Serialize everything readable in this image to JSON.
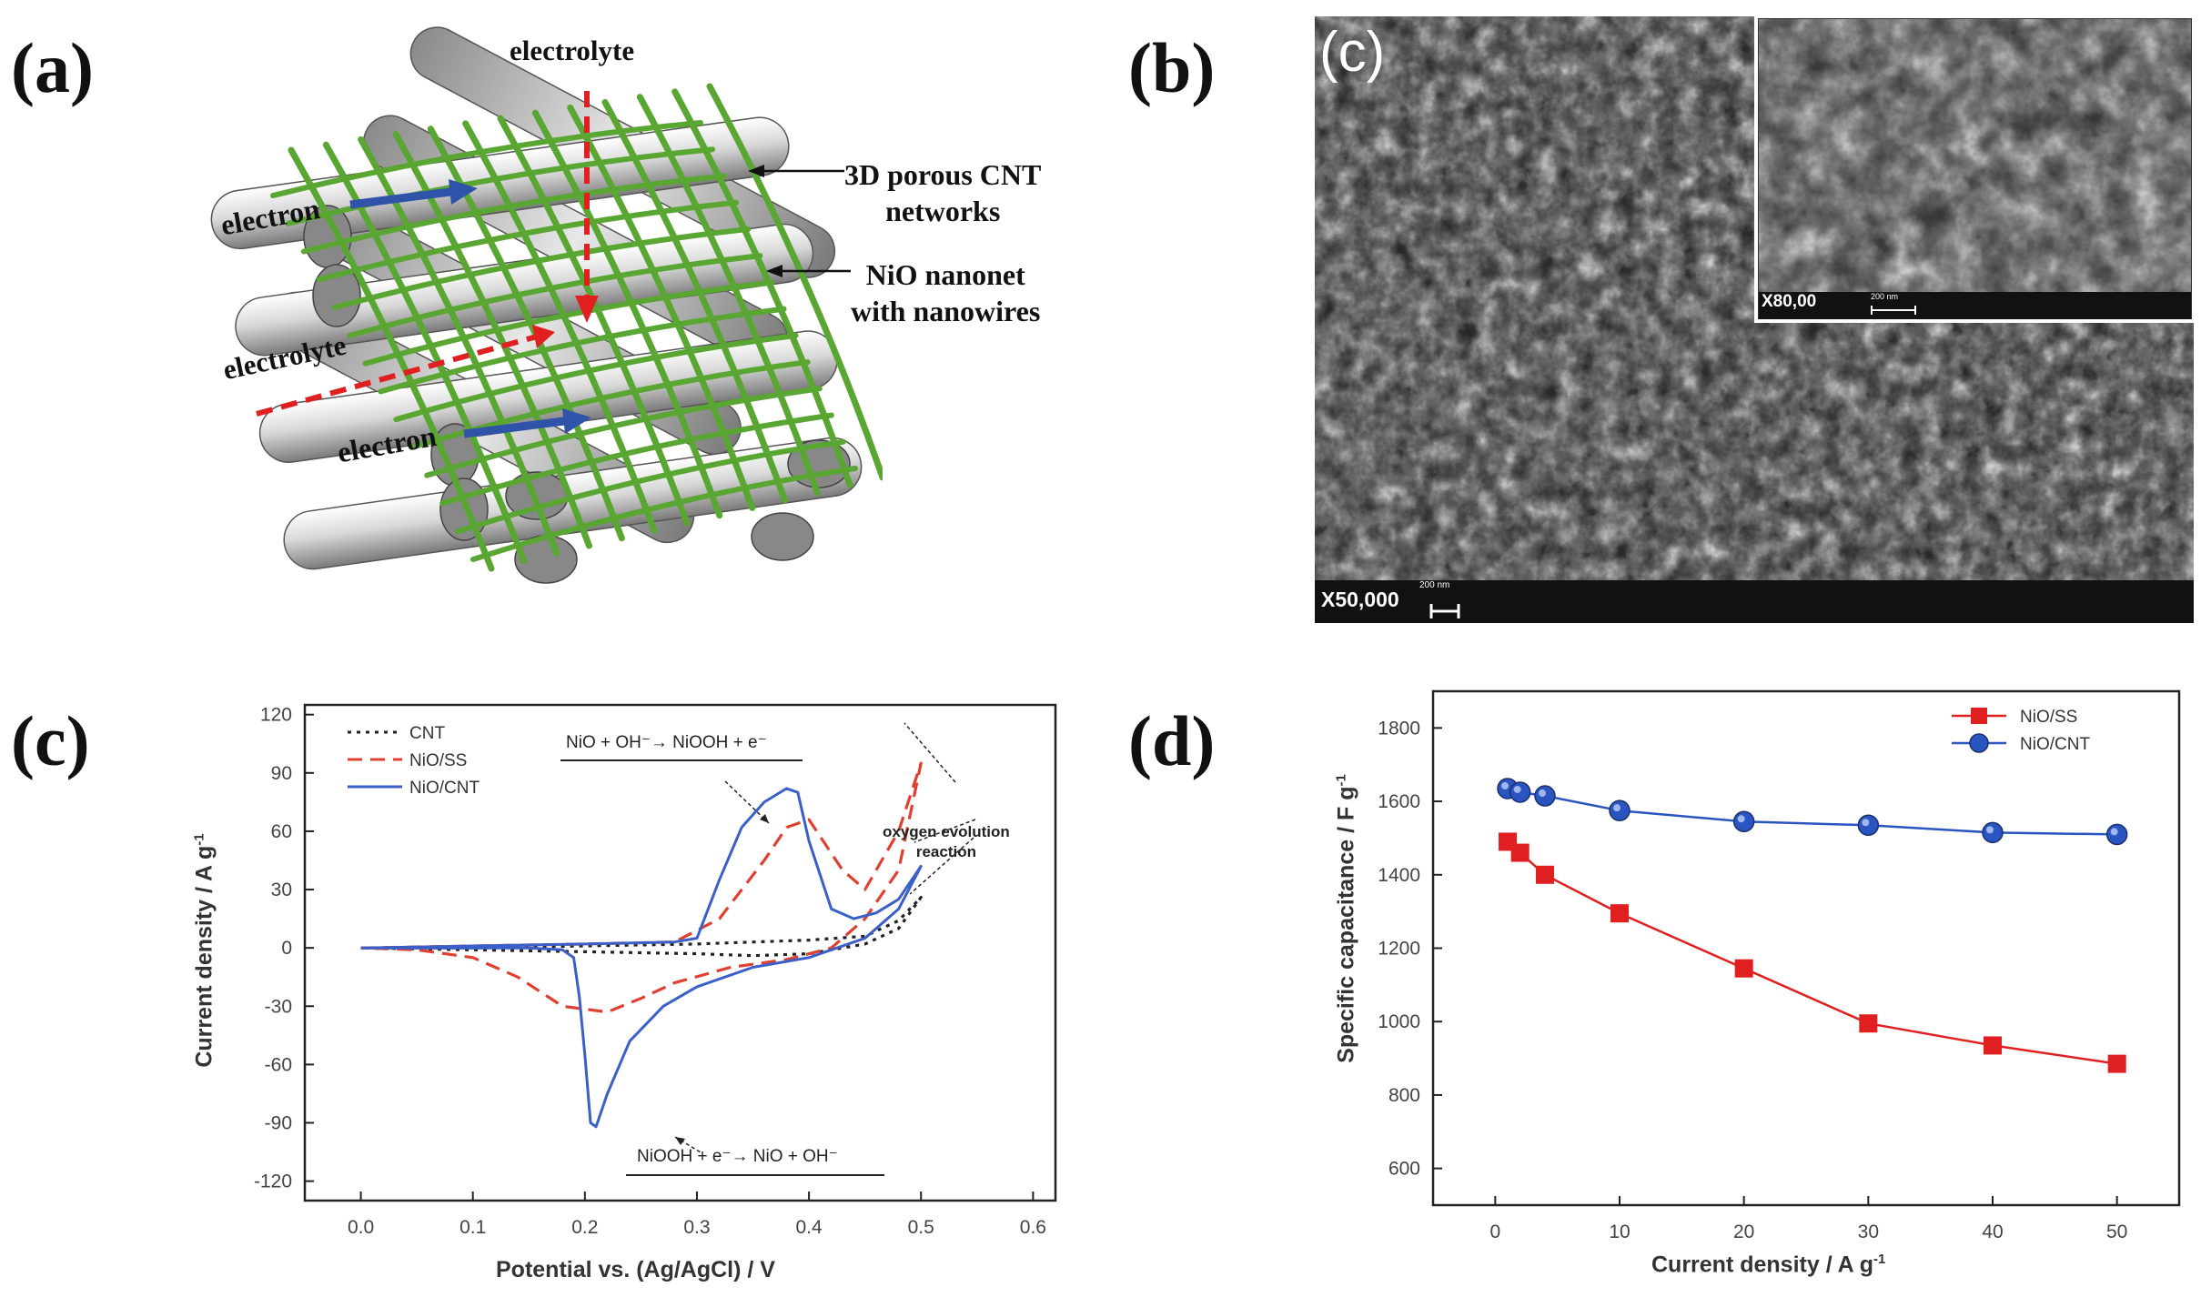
{
  "panels": {
    "a": {
      "label": "(a)",
      "labels": {
        "electrolyte_top": "electrolyte",
        "electrolyte_left": "electrolyte",
        "electron_top": "electron",
        "electron_bottom": "electron",
        "cnt_line1": "3D porous CNT",
        "cnt_line2": "networks",
        "nio_line1": "NiO nanonet",
        "nio_line2": "with nanowires"
      },
      "colors": {
        "mesh": "#5aa632",
        "rod": "#c9c9c9",
        "arrow_electron": "#2f53a8",
        "arrow_electrolyte": "#e02020"
      }
    },
    "b": {
      "label": "(b)",
      "sem_label": "(c)",
      "magnification": "X50,000",
      "inset_magnification": "X80,00",
      "scale_bar": "200 nm",
      "inset_scale_bar": "200 nm"
    },
    "c": {
      "label": "(c)",
      "xlabel": "Potential vs. (Ag/AgCl) /  V",
      "ylabel": "Current density / A g",
      "ylabel_sup": "-1",
      "annot_oxidation": "NiO + OH⁻→ NiOOH + e⁻",
      "annot_reduction": "NiOOH + e⁻→ NiO + OH⁻",
      "annot_oer_line1": "oxygen evolution",
      "annot_oer_line2": "reaction"
    },
    "d": {
      "label": "(d)",
      "xlabel": "Current density /  A g",
      "xlabel_sup": "-1",
      "ylabel": "Specific capacitance /  F g",
      "ylabel_sup": "-1"
    }
  },
  "chart_data": [
    {
      "type": "line",
      "panel": "c",
      "xlim": [
        -0.05,
        0.62
      ],
      "ylim": [
        -130,
        125
      ],
      "xticks": [
        0.0,
        0.1,
        0.2,
        0.3,
        0.4,
        0.5,
        0.6
      ],
      "xtick_labels": [
        "0.0",
        "0.1",
        "0.2",
        "0.3",
        "0.4",
        "0.5",
        "0.6"
      ],
      "yticks": [
        -120,
        -90,
        -60,
        -30,
        0,
        30,
        60,
        90,
        120
      ],
      "ytick_labels": [
        "-120",
        "-90",
        "-60",
        "-30",
        "0",
        "30",
        "60",
        "90",
        "120"
      ],
      "legend_position": "top-left",
      "series": [
        {
          "name": "CNT",
          "color": "#222222",
          "style": "dotted",
          "x": [
            0.0,
            0.1,
            0.2,
            0.3,
            0.35,
            0.4,
            0.45,
            0.48,
            0.5,
            0.48,
            0.45,
            0.4,
            0.35,
            0.3,
            0.2,
            0.1,
            0.0
          ],
          "y": [
            0,
            0,
            1,
            2,
            3,
            4,
            6,
            14,
            26,
            10,
            2,
            -3,
            -4,
            -3,
            -2,
            -1,
            0
          ]
        },
        {
          "name": "NiO/SS",
          "color": "#e04030",
          "style": "dashed",
          "x": [
            0.0,
            0.1,
            0.2,
            0.28,
            0.32,
            0.36,
            0.38,
            0.4,
            0.43,
            0.45,
            0.48,
            0.5,
            0.48,
            0.45,
            0.42,
            0.38,
            0.33,
            0.28,
            0.25,
            0.22,
            0.18,
            0.14,
            0.1,
            0.05,
            0.0
          ],
          "y": [
            0,
            1,
            2,
            3,
            15,
            45,
            62,
            66,
            40,
            30,
            60,
            95,
            40,
            15,
            0,
            -6,
            -10,
            -18,
            -26,
            -33,
            -30,
            -15,
            -5,
            -1,
            0
          ]
        },
        {
          "name": "NiO/CNT",
          "color": "#3a5fc8",
          "style": "solid",
          "x": [
            0.0,
            0.1,
            0.2,
            0.28,
            0.3,
            0.32,
            0.34,
            0.36,
            0.38,
            0.39,
            0.4,
            0.42,
            0.44,
            0.46,
            0.48,
            0.5,
            0.48,
            0.45,
            0.4,
            0.35,
            0.3,
            0.27,
            0.24,
            0.22,
            0.21,
            0.205,
            0.2,
            0.195,
            0.19,
            0.18,
            0.15,
            0.1,
            0.0
          ],
          "y": [
            0,
            1,
            2,
            3,
            5,
            35,
            62,
            75,
            82,
            80,
            55,
            20,
            15,
            18,
            25,
            42,
            20,
            5,
            -5,
            -10,
            -20,
            -30,
            -48,
            -75,
            -92,
            -90,
            -55,
            -25,
            -5,
            -1,
            0,
            0,
            0
          ]
        }
      ]
    },
    {
      "type": "line",
      "panel": "d",
      "xlim": [
        -5,
        55
      ],
      "ylim": [
        500,
        1900
      ],
      "xticks": [
        0,
        10,
        20,
        30,
        40,
        50
      ],
      "xtick_labels": [
        "0",
        "10",
        "20",
        "30",
        "40",
        "50"
      ],
      "yticks": [
        600,
        800,
        1000,
        1200,
        1400,
        1600,
        1800
      ],
      "ytick_labels": [
        "600",
        "800",
        "1000",
        "1200",
        "1400",
        "1600",
        "1800"
      ],
      "legend_position": "top-right",
      "series": [
        {
          "name": "NiO/SS",
          "color": "#e02020",
          "marker": "square",
          "x": [
            1,
            2,
            4,
            10,
            20,
            30,
            40,
            50
          ],
          "y": [
            1490,
            1460,
            1400,
            1295,
            1145,
            995,
            935,
            885
          ]
        },
        {
          "name": "NiO/CNT",
          "color": "#2a55c0",
          "marker": "circle",
          "x": [
            1,
            2,
            4,
            10,
            20,
            30,
            40,
            50
          ],
          "y": [
            1635,
            1625,
            1615,
            1575,
            1545,
            1535,
            1515,
            1510
          ]
        }
      ]
    }
  ]
}
